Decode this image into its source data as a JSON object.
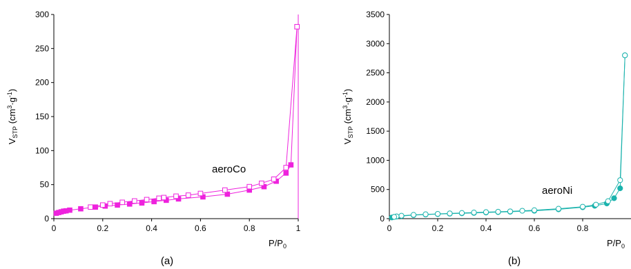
{
  "chart_data": [
    {
      "type": "scatter",
      "subplot_label": "(a)",
      "annotation": "aeroCo",
      "color": "#ee22dd",
      "ylabel": {
        "main": "V",
        "sub": "STP",
        "rest": " (cm",
        "sup1": "3",
        "mid": "·g",
        "sup2": "-1",
        "close": ")"
      },
      "xlabel": {
        "main": "P/P",
        "sub": "0"
      },
      "xlim": [
        0,
        1
      ],
      "ylim": [
        0,
        300
      ],
      "xticks": [
        0,
        0.2,
        0.4,
        0.6,
        0.8,
        1
      ],
      "xtick_labels": [
        "0",
        "0.2",
        "0.4",
        "0.6",
        "0.8",
        "1"
      ],
      "yticks": [
        0,
        50,
        100,
        150,
        200,
        250,
        300
      ],
      "ytick_labels": [
        "0",
        "50",
        "100",
        "150",
        "200",
        "250",
        "300"
      ],
      "series": [
        {
          "marker": "square-filled",
          "x": [
            0.01,
            0.02,
            0.03,
            0.04,
            0.05,
            0.065,
            0.11,
            0.17,
            0.21,
            0.26,
            0.31,
            0.36,
            0.41,
            0.46,
            0.51,
            0.61,
            0.71,
            0.8,
            0.86,
            0.91,
            0.95,
            0.97,
            0.995
          ],
          "y": [
            8,
            9,
            10,
            11,
            11.5,
            12.5,
            14.5,
            17,
            18.5,
            20,
            21.5,
            23,
            25,
            27,
            29,
            32,
            36,
            42,
            47,
            55,
            67,
            79,
            282
          ]
        },
        {
          "marker": "square-open",
          "x": [
            0.995,
            0.95,
            0.9,
            0.85,
            0.8,
            0.7,
            0.6,
            0.55,
            0.5,
            0.45,
            0.43,
            0.38,
            0.33,
            0.28,
            0.23,
            0.2,
            0.15
          ],
          "y": [
            282,
            75,
            58,
            52,
            47,
            42,
            37,
            34.5,
            33,
            31,
            30,
            28,
            26,
            24,
            22,
            20,
            17
          ]
        }
      ]
    },
    {
      "type": "scatter",
      "subplot_label": "(b)",
      "annotation": "aeroNi",
      "color": "#1bb3ad",
      "ylabel": {
        "main": "V",
        "sub": "STP",
        "rest": " (cm",
        "sup1": "3",
        "mid": "·g",
        "sup2": "-1",
        "close": ")"
      },
      "xlabel": {
        "main": "P/P",
        "sub": "0"
      },
      "xlim": [
        0,
        1
      ],
      "ylim": [
        0,
        3500
      ],
      "xticks": [
        0,
        0.2,
        0.4,
        0.6,
        0.8
      ],
      "xtick_labels": [
        "0",
        "0.2",
        "0.4",
        "0.6",
        "0.8"
      ],
      "yticks": [
        0,
        500,
        1000,
        1500,
        2000,
        2500,
        3000,
        3500
      ],
      "ytick_labels": [
        "0",
        "500",
        "1000",
        "1500",
        "2000",
        "2500",
        "3000",
        "3500"
      ],
      "series": [
        {
          "marker": "circle-filled",
          "x": [
            0.01,
            0.02,
            0.03,
            0.05,
            0.1,
            0.15,
            0.2,
            0.25,
            0.3,
            0.35,
            0.4,
            0.45,
            0.5,
            0.6,
            0.7,
            0.8,
            0.85,
            0.9,
            0.93,
            0.955,
            0.975
          ],
          "y": [
            20,
            30,
            35,
            45,
            60,
            70,
            78,
            85,
            92,
            98,
            105,
            112,
            118,
            135,
            160,
            195,
            220,
            260,
            350,
            520,
            2800
          ]
        },
        {
          "marker": "circle-open",
          "x": [
            0.975,
            0.955,
            0.905,
            0.855,
            0.8,
            0.7,
            0.6,
            0.55,
            0.5,
            0.45,
            0.4,
            0.35,
            0.3,
            0.25,
            0.2,
            0.15,
            0.1,
            0.05,
            0.03,
            0.02
          ],
          "y": [
            2800,
            660,
            300,
            240,
            205,
            170,
            145,
            135,
            125,
            118,
            112,
            105,
            98,
            90,
            82,
            75,
            65,
            50,
            38,
            30
          ]
        }
      ]
    }
  ]
}
